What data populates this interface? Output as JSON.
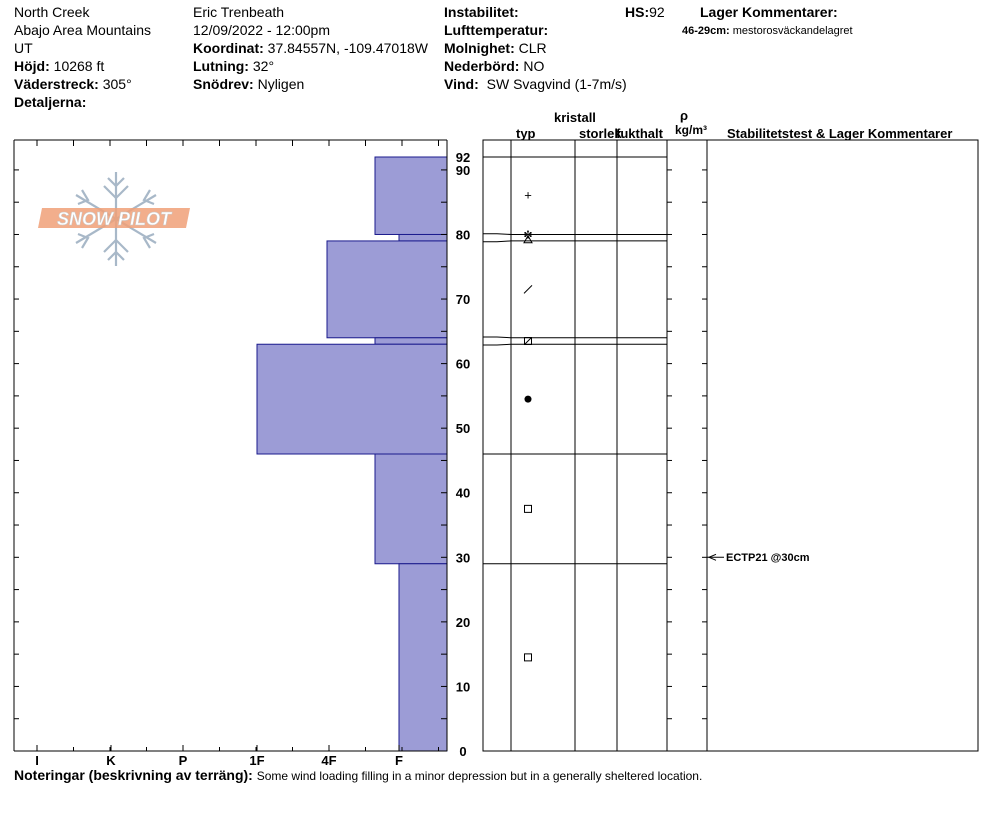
{
  "header": {
    "location_name": "North Creek",
    "range": "Abajo Area Mountains",
    "state": "UT",
    "elevation_label": "Höjd:",
    "elevation_value": "10268 ft",
    "aspect_label": "Väderstreck:",
    "aspect_value": "305°",
    "details_label": "Detaljerna:",
    "observer": "Eric Trenbeath",
    "datetime": "12/09/2022 - 12:00pm",
    "coord_label": "Koordinat:",
    "coord_value": "37.84557N, -109.47018W",
    "slope_label": "Lutning:",
    "slope_value": "32°",
    "drift_label": "Snödrev:",
    "drift_value": "Nyligen",
    "instability_label": "Instabilitet:",
    "air_temp_label": "Lufttemperatur:",
    "sky_label": "Molnighet:",
    "sky_value": "CLR",
    "precip_label": "Nederbörd:",
    "precip_value": "NO",
    "wind_label": "Vind:",
    "wind_value": "SW Svagvind (1-7m/s)",
    "hs_label": "HS:",
    "hs_value": "92",
    "layer_comments_label": "Lager Kommentarer:",
    "layer_comment_range": "46-29cm:",
    "layer_comment_text": "mestorosväckandelagret"
  },
  "columns": {
    "kristall": "kristall",
    "typ": "typ",
    "storlek": "storlek",
    "fukthalt": "fukthalt",
    "rho": "ρ",
    "density_unit": "kg/m³",
    "stability": "Stabilitetstest & Lager Kommentarer"
  },
  "logo_text": "SNOW PILOT",
  "notes": {
    "label": "Noteringar (beskrivning av terräng):",
    "text": "Some wind loading filling in a minor depression but in a generally sheltered location."
  },
  "test_result": {
    "label": "ECTP21 @30cm",
    "depth": 30
  },
  "colors": {
    "bar_fill": "#9c9cd6",
    "bar_stroke": "#1a1a8c",
    "logo_orange": "#f0a078",
    "logo_blue": "#a8b8c8"
  },
  "chart_data": {
    "type": "bar",
    "title": "",
    "xlabel": "",
    "ylabel": "",
    "ylim": [
      0,
      92
    ],
    "y_ticks": [
      0,
      10,
      20,
      30,
      40,
      50,
      60,
      70,
      80,
      90
    ],
    "hs_tick": 92,
    "hardness_categories": [
      "I",
      "K",
      "P",
      "1F",
      "4F",
      "F"
    ],
    "layers": [
      {
        "top": 92,
        "bottom": 80,
        "hardness": "4F-",
        "grain": "+"
      },
      {
        "top": 80,
        "bottom": 79,
        "hardness": "F",
        "grain": "⋇△"
      },
      {
        "top": 79,
        "bottom": 64,
        "hardness": "4F+",
        "grain": "/"
      },
      {
        "top": 64,
        "bottom": 63,
        "hardness": "4F-",
        "grain": "⊠"
      },
      {
        "top": 63,
        "bottom": 46,
        "hardness": "1F",
        "grain": "●"
      },
      {
        "top": 46,
        "bottom": 29,
        "hardness": "4F-",
        "grain": "□"
      },
      {
        "top": 29,
        "bottom": 0,
        "hardness": "F",
        "grain": "□"
      }
    ]
  }
}
